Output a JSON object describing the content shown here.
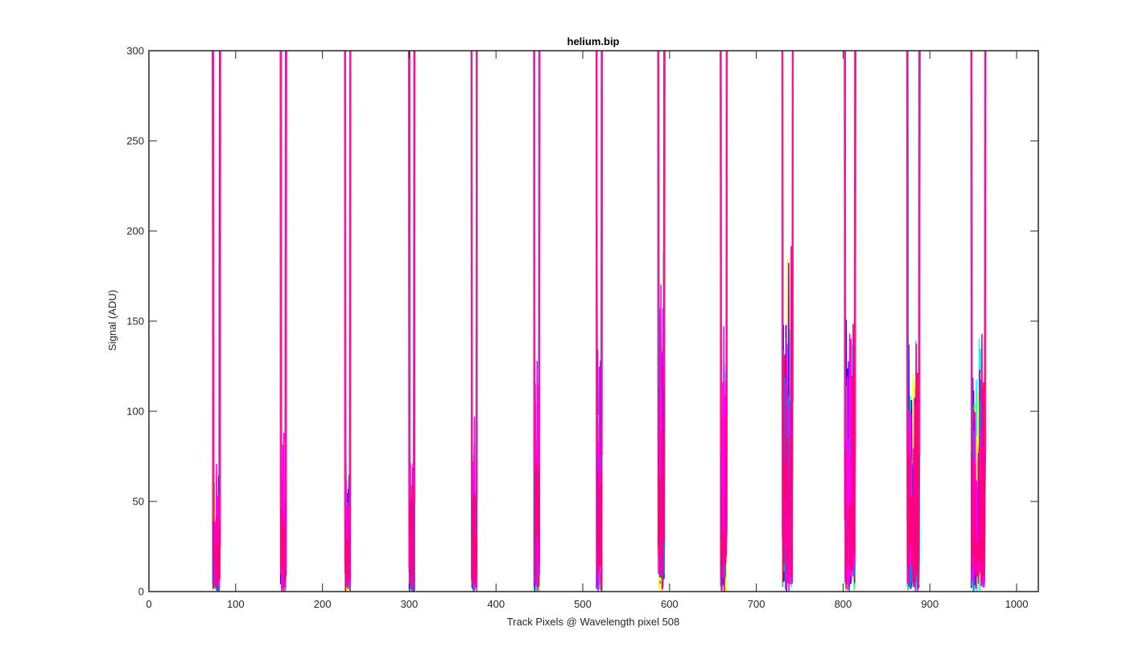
{
  "chart_data": {
    "type": "line",
    "title": "helium.bip",
    "xlabel": "Track Pixels @ Wavelength pixel 508",
    "ylabel": "Signal (ADU)",
    "xlim": [
      0,
      1025
    ],
    "ylim": [
      0,
      300
    ],
    "xticks": [
      0,
      100,
      200,
      300,
      400,
      500,
      600,
      700,
      800,
      900,
      1000
    ],
    "yticks": [
      0,
      50,
      100,
      150,
      200,
      250,
      300
    ],
    "grid": false,
    "legend": "none",
    "box": true,
    "fiber_traces": [
      {
        "left_edge": 74,
        "right_edge": 82,
        "noise_peak": 78
      },
      {
        "left_edge": 152,
        "right_edge": 158,
        "noise_peak": 92
      },
      {
        "left_edge": 226,
        "right_edge": 232,
        "noise_peak": 78
      },
      {
        "left_edge": 300,
        "right_edge": 306,
        "noise_peak": 98
      },
      {
        "left_edge": 372,
        "right_edge": 378,
        "noise_peak": 102
      },
      {
        "left_edge": 444,
        "right_edge": 450,
        "noise_peak": 133
      },
      {
        "left_edge": 516,
        "right_edge": 522,
        "noise_peak": 150
      },
      {
        "left_edge": 587,
        "right_edge": 594,
        "noise_peak": 226
      },
      {
        "left_edge": 659,
        "right_edge": 666,
        "noise_peak": 152
      },
      {
        "left_edge": 730,
        "right_edge": 742,
        "noise_peak": 210
      },
      {
        "left_edge": 802,
        "right_edge": 814,
        "noise_peak": 164
      },
      {
        "left_edge": 874,
        "right_edge": 888,
        "noise_peak": 152
      },
      {
        "left_edge": 948,
        "right_edge": 964,
        "noise_peak": 155
      }
    ],
    "series_colors": [
      "#0000ff",
      "#00ffff",
      "#00ff66",
      "#ffff00",
      "#ff0000",
      "#8000ff",
      "#0080ff",
      "#ff00ff",
      "#ff0080"
    ]
  }
}
